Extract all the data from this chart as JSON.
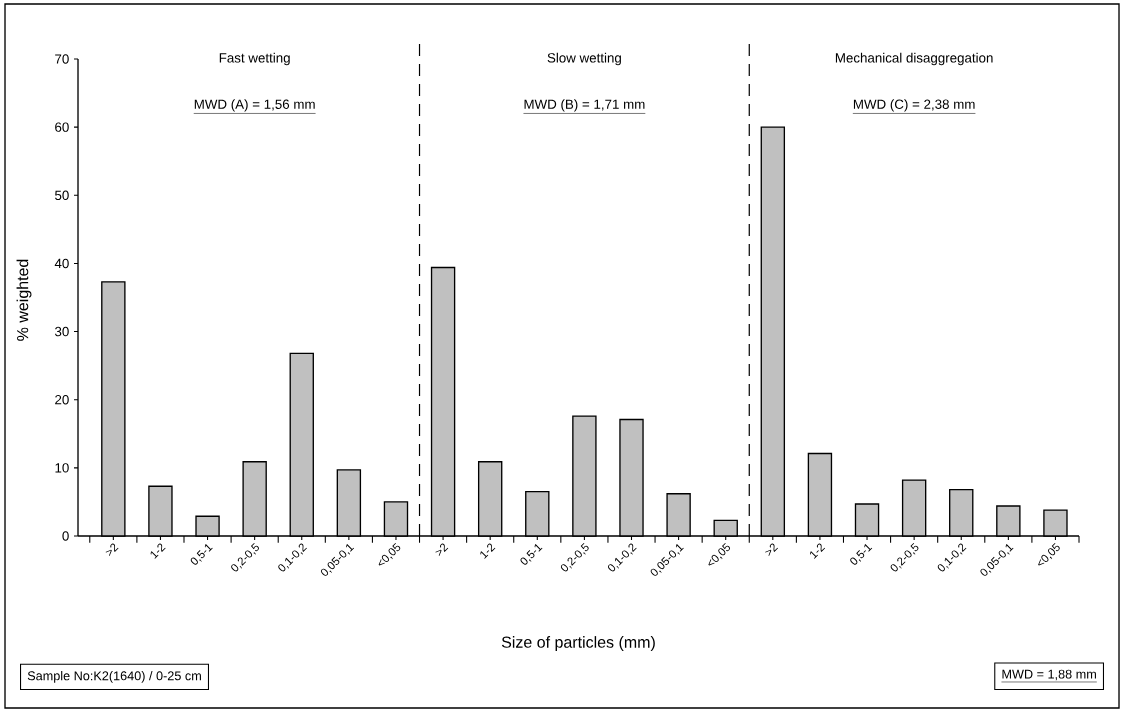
{
  "chart_data": {
    "type": "bar",
    "xlabel": "Size of particles (mm)",
    "ylabel": "% weighted",
    "categories": [
      ">2",
      "1-2",
      "0,5-1",
      "0,2-0,5",
      "0,1-0,2",
      "0,05-0,1",
      "<0,05",
      ">2",
      "1-2",
      "0,5-1",
      "0,2-0,5",
      "0,1-0,2",
      "0,05-0,1",
      "<0,05",
      ">2",
      "1-2",
      "0,5-1",
      "0,2-0,5",
      "0,1-0,2",
      "0,05-0,1",
      "<0,05"
    ],
    "values": [
      37.3,
      7.3,
      2.9,
      10.9,
      26.8,
      9.7,
      5.0,
      39.4,
      10.9,
      6.5,
      17.6,
      17.1,
      6.2,
      2.3,
      60.0,
      12.1,
      4.7,
      8.2,
      6.8,
      4.4,
      3.8
    ],
    "color": "#c0c0c0",
    "ylim": [
      0,
      70
    ],
    "yticks": [
      0,
      10,
      20,
      30,
      40,
      50,
      60,
      70
    ],
    "grid": false,
    "annotations": [
      "Fast wetting",
      "MWD (A) = 1,56 mm",
      "Slow wetting",
      "MWD (B) = 1,71 mm",
      "Mechanical disaggregation",
      "MWD (C) = 2,38 mm",
      "Sample No:K2(1640) / 0-25 cm",
      "MWD = 1,88 mm"
    ]
  }
}
